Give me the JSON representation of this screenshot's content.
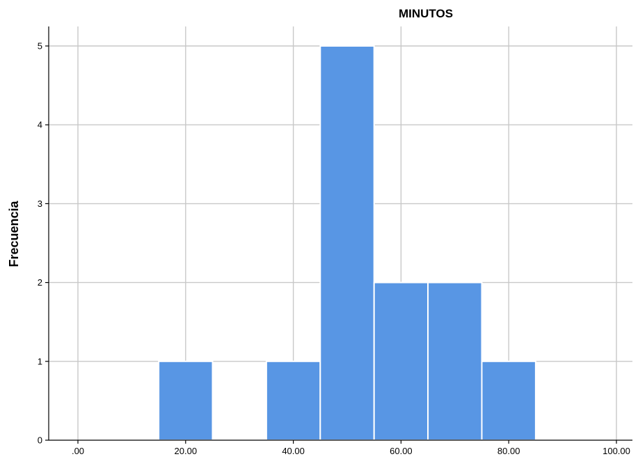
{
  "chart_data": {
    "type": "bar",
    "title": "MINUTOS",
    "xlabel": "",
    "ylabel": "Frecuencia",
    "xlim": [
      0,
      100
    ],
    "ylim": [
      0,
      5
    ],
    "x_ticks": [
      0,
      20,
      40,
      60,
      80,
      100
    ],
    "x_tick_labels": [
      ".00",
      "20.00",
      "40.00",
      "60.00",
      "80.00",
      "100.00"
    ],
    "y_ticks": [
      0,
      1,
      2,
      3,
      4,
      5
    ],
    "y_tick_labels": [
      "0",
      "1",
      "2",
      "3",
      "4",
      "5"
    ],
    "grid": true,
    "bar_color": "#5896e4",
    "bins": [
      {
        "start": 15,
        "end": 25,
        "count": 1
      },
      {
        "start": 35,
        "end": 45,
        "count": 1
      },
      {
        "start": 45,
        "end": 55,
        "count": 5
      },
      {
        "start": 55,
        "end": 65,
        "count": 2
      },
      {
        "start": 65,
        "end": 75,
        "count": 2
      },
      {
        "start": 75,
        "end": 85,
        "count": 1
      }
    ]
  }
}
